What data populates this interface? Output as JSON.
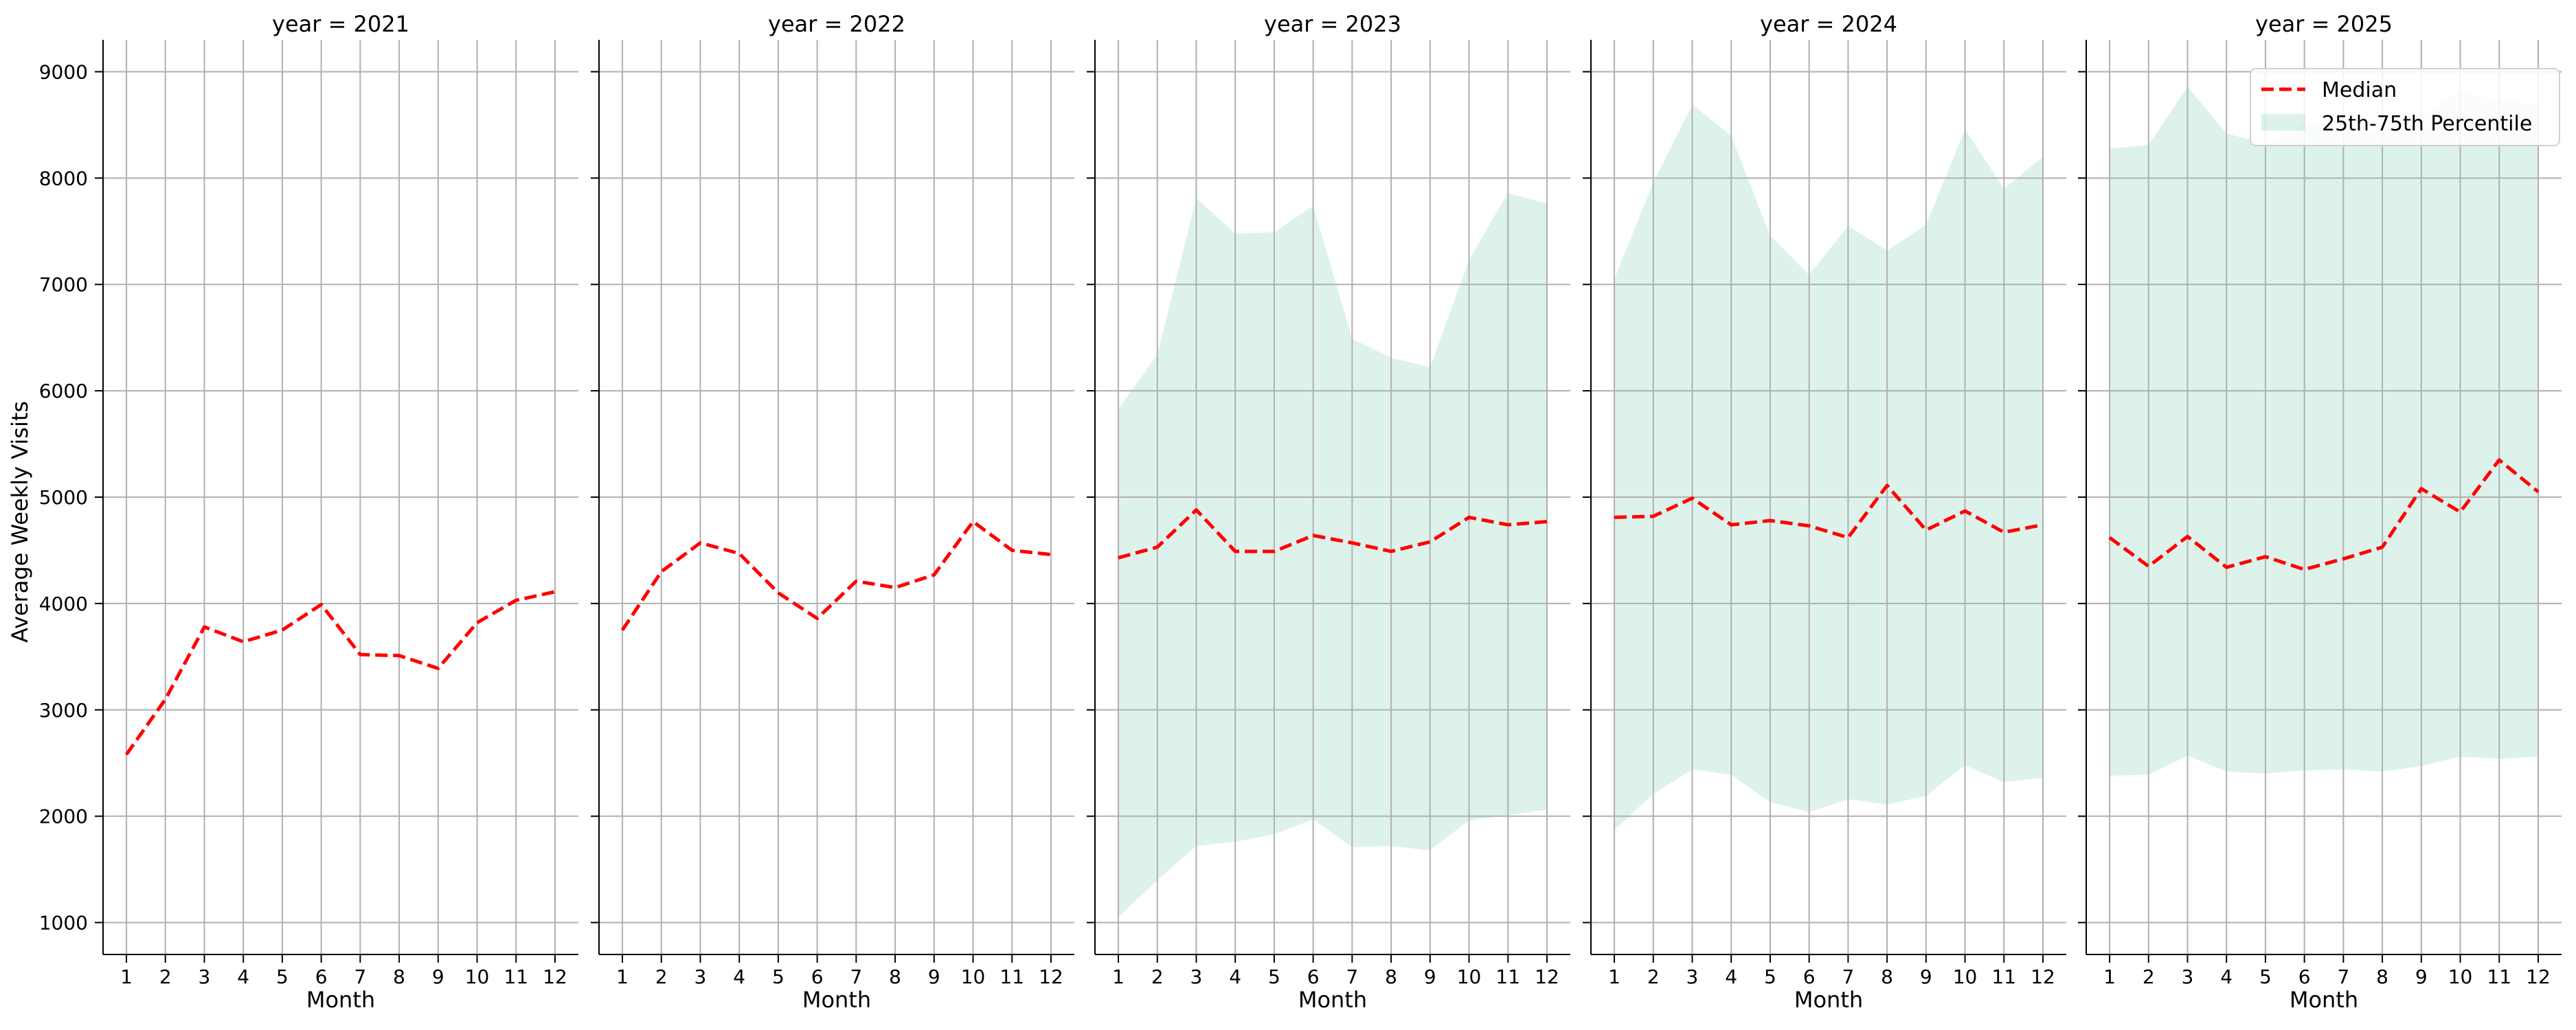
{
  "chart_data": {
    "type": "line",
    "facet_variable": "year",
    "facet_title_format": "year = {v}",
    "ylabel": "Average Weekly Visits",
    "xlabel": "Month",
    "ylim": [
      700,
      9300
    ],
    "yticks": [
      1000,
      2000,
      3000,
      4000,
      5000,
      6000,
      7000,
      8000,
      9000
    ],
    "xlim": [
      0.4,
      12.6
    ],
    "xticks": [
      1,
      2,
      3,
      4,
      5,
      6,
      7,
      8,
      9,
      10,
      11,
      12
    ],
    "grid": true,
    "shared_y": true,
    "legend": {
      "placement": "top-right",
      "panel": 4,
      "entries": [
        {
          "label": "Median",
          "kind": "line",
          "color": "#ff0000",
          "style": "dashed"
        },
        {
          "label": "25th-75th Percentile",
          "kind": "band",
          "color": "#66c2a5",
          "opacity": 0.22
        }
      ]
    },
    "panels": [
      {
        "facet": "2021",
        "months": [
          1,
          2,
          3,
          4,
          5,
          6,
          7,
          8,
          9,
          10,
          11,
          12
        ],
        "median": [
          2580,
          3100,
          3780,
          3640,
          3750,
          3990,
          3520,
          3510,
          3390,
          3820,
          4030,
          4110
        ],
        "p25": null,
        "p75": null
      },
      {
        "facet": "2022",
        "months": [
          1,
          2,
          3,
          4,
          5,
          6,
          7,
          8,
          9,
          10,
          11,
          12
        ],
        "median": [
          3750,
          4300,
          4570,
          4470,
          4100,
          3860,
          4210,
          4150,
          4270,
          4770,
          4500,
          4460
        ],
        "p25": null,
        "p75": null
      },
      {
        "facet": "2023",
        "months": [
          1,
          2,
          3,
          4,
          5,
          6,
          7,
          8,
          9,
          10,
          11,
          12
        ],
        "median": [
          4430,
          4530,
          4880,
          4490,
          4490,
          4640,
          4570,
          4490,
          4580,
          4810,
          4740,
          4770
        ],
        "p25": [
          1050,
          1400,
          1720,
          1760,
          1830,
          1970,
          1710,
          1720,
          1680,
          1960,
          2010,
          2060
        ],
        "p75": [
          5830,
          6340,
          7810,
          7480,
          7490,
          7740,
          6490,
          6310,
          6220,
          7230,
          7860,
          7760
        ]
      },
      {
        "facet": "2024",
        "months": [
          1,
          2,
          3,
          4,
          5,
          6,
          7,
          8,
          9,
          10,
          11,
          12
        ],
        "median": [
          4810,
          4820,
          4990,
          4740,
          4780,
          4730,
          4620,
          5110,
          4690,
          4870,
          4670,
          4740
        ],
        "p25": [
          1870,
          2210,
          2440,
          2390,
          2130,
          2040,
          2160,
          2110,
          2190,
          2480,
          2320,
          2360
        ],
        "p75": [
          7050,
          7960,
          8690,
          8400,
          7460,
          7090,
          7550,
          7320,
          7560,
          8460,
          7900,
          8200
        ]
      },
      {
        "facet": "2025",
        "months": [
          1,
          2,
          3,
          4,
          5,
          6,
          7,
          8,
          9,
          10,
          11,
          12
        ],
        "median": [
          4620,
          4350,
          4630,
          4340,
          4440,
          4320,
          4420,
          4530,
          5080,
          4860,
          5350,
          5050
        ],
        "p25": [
          2380,
          2390,
          2570,
          2420,
          2400,
          2430,
          2440,
          2420,
          2470,
          2560,
          2540,
          2560
        ],
        "p75": [
          8280,
          8310,
          8860,
          8420,
          8320,
          8520,
          8500,
          8440,
          8590,
          8830,
          8720,
          8700
        ]
      }
    ]
  }
}
